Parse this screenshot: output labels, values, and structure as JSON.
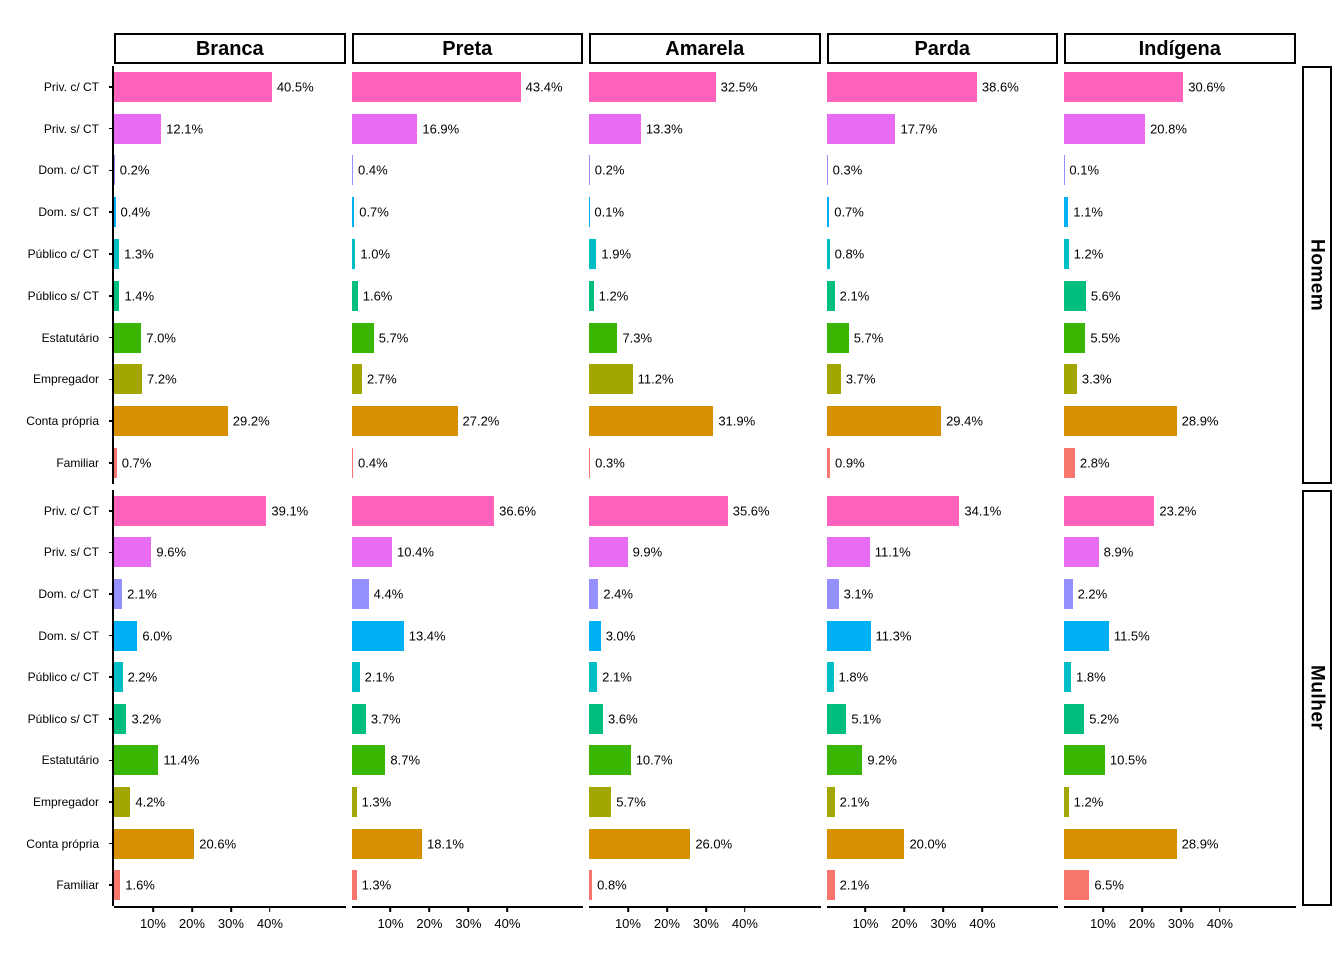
{
  "chart_data": {
    "type": "bar",
    "orientation": "horizontal",
    "title": "",
    "facet_col_labels": [
      "Branca",
      "Preta",
      "Amarela",
      "Parda",
      "Indígena"
    ],
    "facet_row_labels": [
      "Homem",
      "Mulher"
    ],
    "categories": [
      "Priv. c/ CT",
      "Priv. s/ CT",
      "Dom. c/ CT",
      "Dom. s/ CT",
      "Público c/ CT",
      "Público s/ CT",
      "Estatutário",
      "Empregador",
      "Conta própria",
      "Familiar"
    ],
    "category_colors": [
      "#FF62BC",
      "#E76BF3",
      "#9590FF",
      "#00B0F6",
      "#00BFC4",
      "#00BF7D",
      "#39B600",
      "#A3A500",
      "#D89000",
      "#F8766D"
    ],
    "x_axis": {
      "tick_values": [
        10,
        20,
        30,
        40
      ],
      "tick_labels": [
        "10%",
        "20%",
        "30%",
        "40%"
      ],
      "max": 59.4,
      "grid": false
    },
    "panels": [
      {
        "facet_row": "Homem",
        "facet_col": "Branca",
        "values": [
          40.5,
          12.1,
          0.2,
          0.4,
          1.3,
          1.4,
          7.0,
          7.2,
          29.2,
          0.7
        ],
        "labels": [
          "40.5%",
          "12.1%",
          "0.2%",
          "0.4%",
          "1.3%",
          "1.4%",
          "7.0%",
          "7.2%",
          "29.2%",
          "0.7%"
        ]
      },
      {
        "facet_row": "Homem",
        "facet_col": "Preta",
        "values": [
          43.4,
          16.9,
          0.4,
          0.7,
          1.0,
          1.6,
          5.7,
          2.7,
          27.2,
          0.4
        ],
        "labels": [
          "43.4%",
          "16.9%",
          "0.4%",
          "0.7%",
          "1.0%",
          "1.6%",
          "5.7%",
          "2.7%",
          "27.2%",
          "0.4%"
        ]
      },
      {
        "facet_row": "Homem",
        "facet_col": "Amarela",
        "values": [
          32.5,
          13.3,
          0.2,
          0.1,
          1.9,
          1.2,
          7.3,
          11.2,
          31.9,
          0.3
        ],
        "labels": [
          "32.5%",
          "13.3%",
          "0.2%",
          "0.1%",
          "1.9%",
          "1.2%",
          "7.3%",
          "11.2%",
          "31.9%",
          "0.3%"
        ]
      },
      {
        "facet_row": "Homem",
        "facet_col": "Parda",
        "values": [
          38.6,
          17.7,
          0.3,
          0.7,
          0.8,
          2.1,
          5.7,
          3.7,
          29.4,
          0.9
        ],
        "labels": [
          "38.6%",
          "17.7%",
          "0.3%",
          "0.7%",
          "0.8%",
          "2.1%",
          "5.7%",
          "3.7%",
          "29.4%",
          "0.9%"
        ]
      },
      {
        "facet_row": "Homem",
        "facet_col": "Indígena",
        "values": [
          30.6,
          20.8,
          0.1,
          1.1,
          1.2,
          5.6,
          5.5,
          3.3,
          28.9,
          2.8
        ],
        "labels": [
          "30.6%",
          "20.8%",
          "0.1%",
          "1.1%",
          "1.2%",
          "5.6%",
          "5.5%",
          "3.3%",
          "28.9%",
          "2.8%"
        ]
      },
      {
        "facet_row": "Mulher",
        "facet_col": "Branca",
        "values": [
          39.1,
          9.6,
          2.1,
          6.0,
          2.2,
          3.2,
          11.4,
          4.2,
          20.6,
          1.6
        ],
        "labels": [
          "39.1%",
          "9.6%",
          "2.1%",
          "6.0%",
          "2.2%",
          "3.2%",
          "11.4%",
          "4.2%",
          "20.6%",
          "1.6%"
        ]
      },
      {
        "facet_row": "Mulher",
        "facet_col": "Preta",
        "values": [
          36.6,
          10.4,
          4.4,
          13.4,
          2.1,
          3.7,
          8.7,
          1.3,
          18.1,
          1.3
        ],
        "labels": [
          "36.6%",
          "10.4%",
          "4.4%",
          "13.4%",
          "2.1%",
          "3.7%",
          "8.7%",
          "1.3%",
          "18.1%",
          "1.3%"
        ]
      },
      {
        "facet_row": "Mulher",
        "facet_col": "Amarela",
        "values": [
          35.6,
          9.9,
          2.4,
          3.0,
          2.1,
          3.6,
          10.7,
          5.7,
          26.0,
          0.8
        ],
        "labels": [
          "35.6%",
          "9.9%",
          "2.4%",
          "3.0%",
          "2.1%",
          "3.6%",
          "10.7%",
          "5.7%",
          "26.0%",
          "0.8%"
        ]
      },
      {
        "facet_row": "Mulher",
        "facet_col": "Parda",
        "values": [
          34.1,
          11.1,
          3.1,
          11.3,
          1.8,
          5.1,
          9.2,
          2.1,
          20.0,
          2.1
        ],
        "labels": [
          "34.1%",
          "11.1%",
          "3.1%",
          "11.3%",
          "1.8%",
          "5.1%",
          "9.2%",
          "2.1%",
          "20.0%",
          "2.1%"
        ]
      },
      {
        "facet_row": "Mulher",
        "facet_col": "Indígena",
        "values": [
          23.2,
          8.9,
          2.2,
          11.5,
          1.8,
          5.2,
          10.5,
          1.2,
          28.9,
          6.5
        ],
        "labels": [
          "23.2%",
          "8.9%",
          "2.2%",
          "11.5%",
          "1.8%",
          "5.2%",
          "10.5%",
          "1.2%",
          "28.9%",
          "6.5%"
        ]
      }
    ],
    "style": {
      "axis_color": "#000000",
      "strip_border_color": "#000000",
      "strip_background": "#ffffff",
      "panel_background": "#ffffff",
      "text_color": "#000000"
    }
  }
}
